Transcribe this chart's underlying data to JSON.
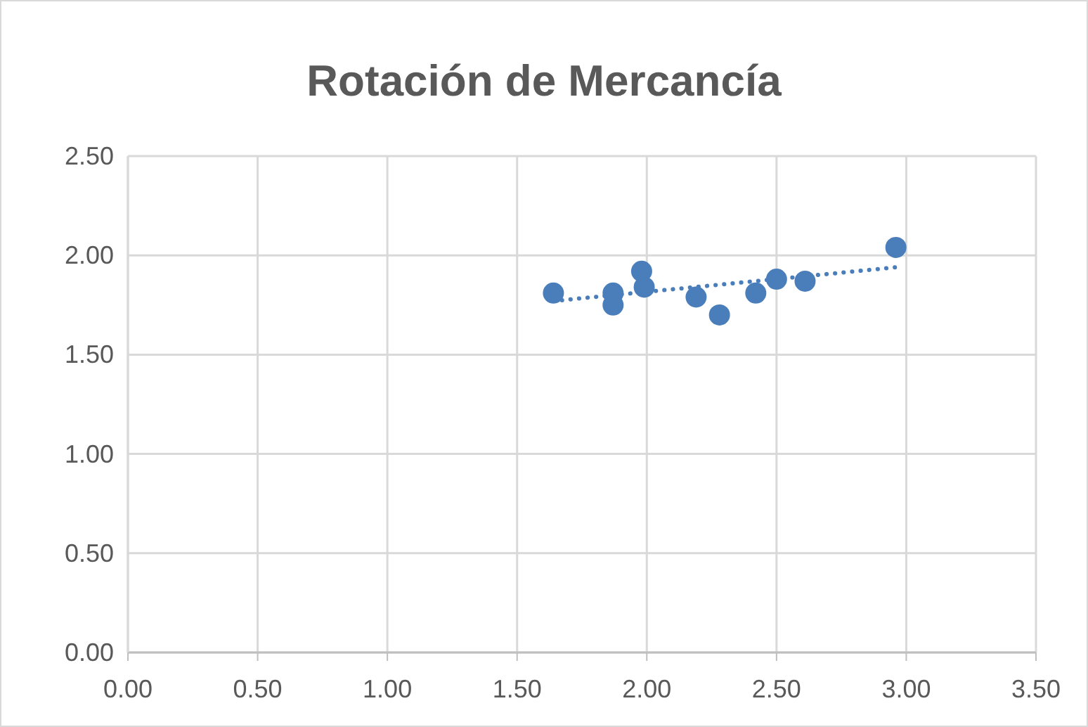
{
  "chart_data": {
    "type": "scatter",
    "title": "Rotación de Mercancía",
    "xlim": [
      0,
      3.5
    ],
    "ylim": [
      0,
      2.5
    ],
    "xticks": [
      {
        "value": 0,
        "label": "0.00"
      },
      {
        "value": 0.5,
        "label": "0.50"
      },
      {
        "value": 1,
        "label": "1.00"
      },
      {
        "value": 1.5,
        "label": "1.50"
      },
      {
        "value": 2,
        "label": "2.00"
      },
      {
        "value": 2.5,
        "label": "2.50"
      },
      {
        "value": 3,
        "label": "3.00"
      },
      {
        "value": 3.5,
        "label": "3.50"
      }
    ],
    "yticks": [
      {
        "value": 0,
        "label": "0.00"
      },
      {
        "value": 0.5,
        "label": "0.50"
      },
      {
        "value": 1,
        "label": "1.00"
      },
      {
        "value": 1.5,
        "label": "1.50"
      },
      {
        "value": 2,
        "label": "2.00"
      },
      {
        "value": 2.5,
        "label": "2.50"
      }
    ],
    "grid": true,
    "series": [
      {
        "color": "#4a7ebb",
        "marker": "circle",
        "x": [
          1.64,
          1.87,
          1.87,
          1.98,
          1.99,
          2.19,
          2.28,
          2.42,
          2.5,
          2.61,
          2.96
        ],
        "values": [
          1.81,
          1.81,
          1.75,
          1.92,
          1.84,
          1.79,
          1.7,
          1.81,
          1.88,
          1.87,
          2.04
        ]
      },
      {
        "type": "line",
        "color": "#4a7ebb",
        "marker": "none",
        "line_style": "dotted",
        "x": [
          1.64,
          2.96
        ],
        "values": [
          1.77,
          1.94
        ]
      }
    ]
  }
}
